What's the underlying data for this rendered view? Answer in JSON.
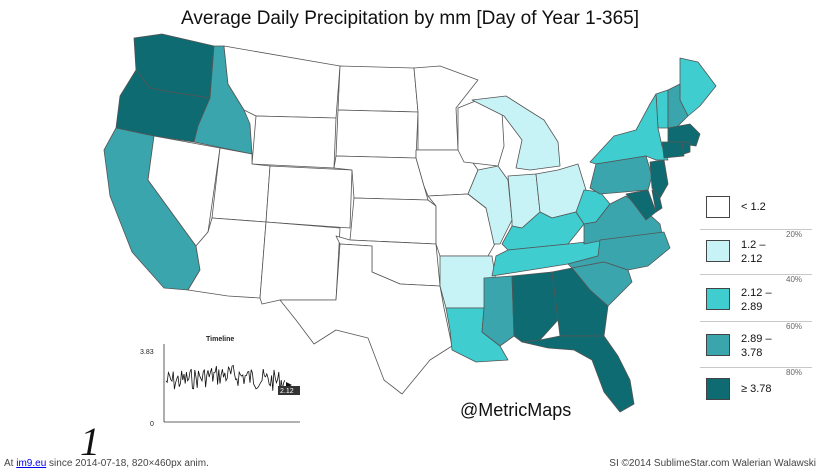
{
  "title": "Average Daily Precipitation by mm [Day of Year 1-365]",
  "colors": {
    "c0": "#ffffff",
    "c1": "#c8f3f6",
    "c2": "#40cdd0",
    "c3": "#3aa5ad",
    "c4": "#0f6b72",
    "border": "#555555"
  },
  "legend": [
    {
      "label": "< 1.2",
      "color": "#ffffff"
    },
    {
      "label": "1.2 –\n2.12",
      "color": "#c8f3f6"
    },
    {
      "label": "2.12 –\n2.89",
      "color": "#40cdd0"
    },
    {
      "label": "2.89 –\n3.78",
      "color": "#3aa5ad"
    },
    {
      "label": "≥ 3.78",
      "color": "#0f6b72"
    }
  ],
  "legend_percents": [
    "20%",
    "40%",
    "60%",
    "80%"
  ],
  "timeline": {
    "title": "Timeline",
    "y_max": "3.83",
    "y_min": "0",
    "current_value": "2.12"
  },
  "handle": "@MetricMaps",
  "frame_number": "1",
  "footer": {
    "left_prefix": "At",
    "left_link": "im9.eu",
    "left_suffix": "since 2014-07-18, 820×460px anim.",
    "right": "SI ©2014 SublimeStar.com Walerian Walawski"
  }
}
